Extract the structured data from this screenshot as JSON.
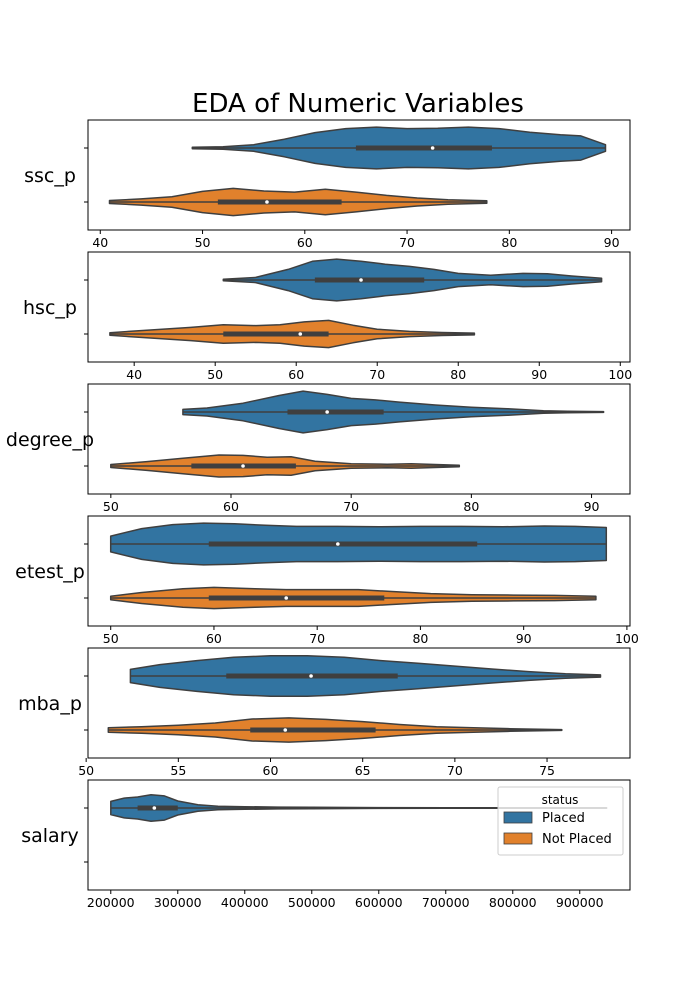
{
  "chart_data": {
    "type": "violin",
    "title": "EDA of Numeric Variables",
    "hue": [
      "Placed",
      "Not Placed"
    ],
    "colors": {
      "Placed": "#3274a1",
      "Not Placed": "#e1812c"
    },
    "legend": {
      "title": "status",
      "placement": "upper-right",
      "panel": 5
    },
    "panels": [
      {
        "ylabel": "ssc_p",
        "xlim": [
          38.8,
          91.8
        ],
        "xticks": [
          40,
          50,
          60,
          70,
          80,
          90
        ],
        "xtick_labels": [
          "40",
          "50",
          "60",
          "70",
          "80",
          "90"
        ],
        "series": [
          {
            "name": "Placed",
            "min": 49,
            "q1": 65,
            "median": 72.5,
            "q3": 78.3,
            "max": 89.4,
            "density": [
              [
                49,
                0.03
              ],
              [
                52,
                0.06
              ],
              [
                55,
                0.15
              ],
              [
                58,
                0.4
              ],
              [
                61,
                0.7
              ],
              [
                64,
                0.88
              ],
              [
                67,
                0.95
              ],
              [
                70,
                0.88
              ],
              [
                73,
                0.9
              ],
              [
                76,
                0.95
              ],
              [
                79,
                0.88
              ],
              [
                82,
                0.72
              ],
              [
                85,
                0.6
              ],
              [
                87,
                0.55
              ],
              [
                89.4,
                0.15
              ]
            ]
          },
          {
            "name": "Not Placed",
            "min": 40.9,
            "q1": 51.5,
            "median": 56.3,
            "q3": 63.6,
            "max": 77.8,
            "density": [
              [
                40.9,
                0.07
              ],
              [
                44,
                0.14
              ],
              [
                47,
                0.24
              ],
              [
                50,
                0.48
              ],
              [
                53,
                0.62
              ],
              [
                56,
                0.5
              ],
              [
                59,
                0.45
              ],
              [
                62,
                0.58
              ],
              [
                65,
                0.45
              ],
              [
                68,
                0.3
              ],
              [
                71,
                0.18
              ],
              [
                74,
                0.1
              ],
              [
                77.8,
                0.06
              ]
            ]
          }
        ]
      },
      {
        "ylabel": "hsc_p",
        "xlim": [
          34.3,
          101.2
        ],
        "xticks": [
          40,
          50,
          60,
          70,
          80,
          90,
          100
        ],
        "xtick_labels": [
          "40",
          "50",
          "60",
          "70",
          "80",
          "90",
          "100"
        ],
        "series": [
          {
            "name": "Placed",
            "min": 51,
            "q1": 62.3,
            "median": 68,
            "q3": 75.8,
            "max": 97.7,
            "density": [
              [
                51,
                0.03
              ],
              [
                55,
                0.12
              ],
              [
                59,
                0.48
              ],
              [
                62,
                0.85
              ],
              [
                65,
                0.95
              ],
              [
                68,
                0.85
              ],
              [
                71,
                0.72
              ],
              [
                74,
                0.62
              ],
              [
                77,
                0.48
              ],
              [
                80,
                0.3
              ],
              [
                84,
                0.22
              ],
              [
                88,
                0.3
              ],
              [
                91,
                0.28
              ],
              [
                94,
                0.18
              ],
              [
                97.7,
                0.08
              ]
            ]
          },
          {
            "name": "Not Placed",
            "min": 37,
            "q1": 51,
            "median": 60.5,
            "q3": 64,
            "max": 82,
            "density": [
              [
                37,
                0.06
              ],
              [
                42,
                0.18
              ],
              [
                47,
                0.3
              ],
              [
                51,
                0.42
              ],
              [
                55,
                0.38
              ],
              [
                58,
                0.42
              ],
              [
                61,
                0.55
              ],
              [
                64,
                0.62
              ],
              [
                67,
                0.4
              ],
              [
                70,
                0.22
              ],
              [
                74,
                0.12
              ],
              [
                78,
                0.07
              ],
              [
                82,
                0.04
              ]
            ]
          }
        ]
      },
      {
        "ylabel": "degree_p",
        "xlim": [
          48.1,
          93.2
        ],
        "xticks": [
          50,
          60,
          70,
          80,
          90
        ],
        "xtick_labels": [
          "50",
          "60",
          "70",
          "80",
          "90"
        ],
        "series": [
          {
            "name": "Placed",
            "min": 56,
            "q1": 64.7,
            "median": 68,
            "q3": 72.7,
            "max": 91,
            "density": [
              [
                56,
                0.12
              ],
              [
                58,
                0.18
              ],
              [
                61,
                0.4
              ],
              [
                64,
                0.75
              ],
              [
                66,
                0.95
              ],
              [
                68,
                0.8
              ],
              [
                70,
                0.62
              ],
              [
                72,
                0.55
              ],
              [
                74,
                0.45
              ],
              [
                77,
                0.32
              ],
              [
                80,
                0.22
              ],
              [
                83,
                0.15
              ],
              [
                86,
                0.06
              ],
              [
                88,
                0.03
              ],
              [
                91,
                0.02
              ]
            ]
          },
          {
            "name": "Not Placed",
            "min": 50,
            "q1": 56.7,
            "median": 61,
            "q3": 65.4,
            "max": 79,
            "density": [
              [
                50,
                0.07
              ],
              [
                53,
                0.2
              ],
              [
                56,
                0.35
              ],
              [
                59,
                0.5
              ],
              [
                61,
                0.48
              ],
              [
                63,
                0.4
              ],
              [
                65,
                0.42
              ],
              [
                67,
                0.22
              ],
              [
                70,
                0.1
              ],
              [
                73,
                0.08
              ],
              [
                75,
                0.1
              ],
              [
                77,
                0.07
              ],
              [
                79,
                0.03
              ]
            ]
          }
        ]
      },
      {
        "ylabel": "etest_p",
        "xlim": [
          47.8,
          100.3
        ],
        "xticks": [
          50,
          60,
          70,
          80,
          90,
          100
        ],
        "xtick_labels": [
          "50",
          "60",
          "70",
          "80",
          "90",
          "100"
        ],
        "series": [
          {
            "name": "Placed",
            "min": 50,
            "q1": 59.5,
            "median": 72,
            "q3": 85.5,
            "max": 98,
            "density": [
              [
                50,
                0.36
              ],
              [
                53,
                0.7
              ],
              [
                56,
                0.88
              ],
              [
                59,
                0.95
              ],
              [
                62,
                0.92
              ],
              [
                65,
                0.85
              ],
              [
                68,
                0.8
              ],
              [
                72,
                0.8
              ],
              [
                76,
                0.78
              ],
              [
                80,
                0.8
              ],
              [
                84,
                0.8
              ],
              [
                88,
                0.78
              ],
              [
                92,
                0.82
              ],
              [
                95,
                0.8
              ],
              [
                98,
                0.75
              ]
            ]
          },
          {
            "name": "Not Placed",
            "min": 50,
            "q1": 59.5,
            "median": 67,
            "q3": 76.5,
            "max": 97,
            "density": [
              [
                50,
                0.08
              ],
              [
                53,
                0.25
              ],
              [
                57,
                0.42
              ],
              [
                60,
                0.48
              ],
              [
                64,
                0.42
              ],
              [
                67,
                0.38
              ],
              [
                70,
                0.38
              ],
              [
                74,
                0.38
              ],
              [
                77,
                0.3
              ],
              [
                81,
                0.2
              ],
              [
                85,
                0.15
              ],
              [
                89,
                0.13
              ],
              [
                93,
                0.12
              ],
              [
                97,
                0.08
              ]
            ]
          }
        ]
      },
      {
        "ylabel": "mba_p",
        "xlim": [
          50.1,
          79.5
        ],
        "xticks": [
          50,
          55,
          60,
          65,
          70,
          75
        ],
        "xtick_labels": [
          "50",
          "55",
          "60",
          "65",
          "70",
          "75"
        ],
        "series": [
          {
            "name": "Placed",
            "min": 52.4,
            "q1": 57.6,
            "median": 62.2,
            "q3": 66.9,
            "max": 77.9,
            "density": [
              [
                52.4,
                0.3
              ],
              [
                54,
                0.52
              ],
              [
                56,
                0.7
              ],
              [
                58,
                0.85
              ],
              [
                60,
                0.92
              ],
              [
                62,
                0.92
              ],
              [
                64,
                0.85
              ],
              [
                66,
                0.7
              ],
              [
                68,
                0.58
              ],
              [
                70,
                0.45
              ],
              [
                72,
                0.32
              ],
              [
                74,
                0.2
              ],
              [
                76,
                0.1
              ],
              [
                77.9,
                0.05
              ]
            ]
          },
          {
            "name": "Not Placed",
            "min": 51.2,
            "q1": 58.9,
            "median": 60.8,
            "q3": 65.7,
            "max": 75.8,
            "density": [
              [
                51.2,
                0.1
              ],
              [
                53,
                0.15
              ],
              [
                55,
                0.22
              ],
              [
                57,
                0.32
              ],
              [
                59,
                0.5
              ],
              [
                61,
                0.55
              ],
              [
                63,
                0.48
              ],
              [
                65,
                0.38
              ],
              [
                67,
                0.25
              ],
              [
                69,
                0.15
              ],
              [
                71,
                0.1
              ],
              [
                73,
                0.06
              ],
              [
                75.8,
                0.02
              ]
            ]
          }
        ]
      },
      {
        "ylabel": "salary",
        "xlim": [
          166000,
          975000
        ],
        "xticks": [
          200000,
          300000,
          400000,
          500000,
          600000,
          700000,
          800000,
          900000
        ],
        "xtick_labels": [
          "200000",
          "300000",
          "400000",
          "500000",
          "600000",
          "700000",
          "800000",
          "900000"
        ],
        "series": [
          {
            "name": "Placed",
            "min": 200000,
            "q1": 240000,
            "median": 265000,
            "q3": 300000,
            "max": 940000,
            "density": [
              [
                200000,
                0.3
              ],
              [
                220000,
                0.45
              ],
              [
                240000,
                0.5
              ],
              [
                260000,
                0.6
              ],
              [
                280000,
                0.55
              ],
              [
                300000,
                0.32
              ],
              [
                330000,
                0.15
              ],
              [
                360000,
                0.08
              ],
              [
                400000,
                0.06
              ],
              [
                450000,
                0.04
              ],
              [
                500000,
                0.03
              ],
              [
                600000,
                0.02
              ],
              [
                700000,
                0.015
              ],
              [
                800000,
                0.015
              ],
              [
                940000,
                0.01
              ]
            ]
          }
        ]
      }
    ]
  }
}
